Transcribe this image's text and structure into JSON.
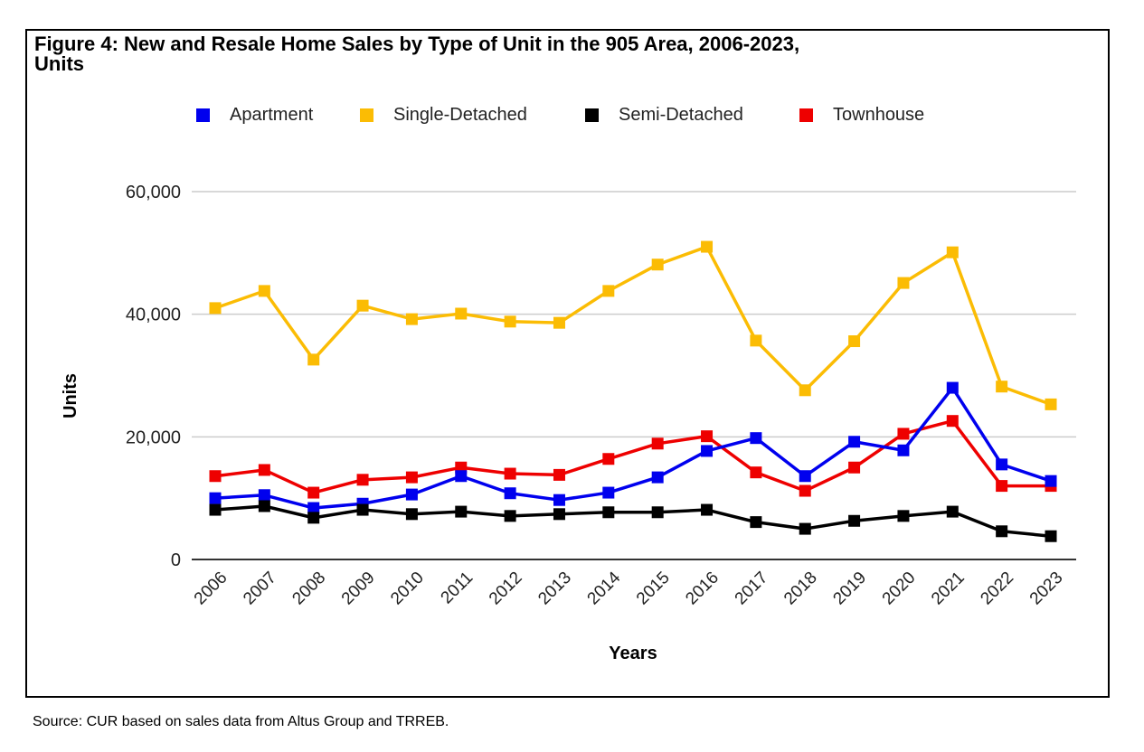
{
  "figure": {
    "source": "Source: CUR based on sales data from Altus Group and TRREB."
  },
  "chart_data": {
    "type": "line",
    "title": "Figure 4: New and Resale Home Sales by Type of Unit in the 905 Area, 2006-2023, Units",
    "title_lines": [
      "Figure 4: New and Resale Home Sales by Type of Unit in the 905 Area, 2006-2023,",
      "Units"
    ],
    "xlabel": "Years",
    "ylabel": "Units",
    "ylim": [
      0,
      60000
    ],
    "yticks": [
      0,
      20000,
      40000,
      60000
    ],
    "ytick_labels": [
      "0",
      "20,000",
      "40,000",
      "60,000"
    ],
    "grid": true,
    "legend_position": "top",
    "categories": [
      "2006",
      "2007",
      "2008",
      "2009",
      "2010",
      "2011",
      "2012",
      "2013",
      "2014",
      "2015",
      "2016",
      "2017",
      "2018",
      "2019",
      "2020",
      "2021",
      "2022",
      "2023"
    ],
    "series": [
      {
        "name": "Apartment",
        "color": "#0000ee",
        "values": [
          10000,
          10500,
          8400,
          9100,
          10600,
          13600,
          10800,
          9700,
          10900,
          13400,
          17700,
          19800,
          13600,
          19200,
          17800,
          28000,
          15500,
          12800
        ]
      },
      {
        "name": "Single-Detached",
        "color": "#fbbc04",
        "values": [
          41000,
          43800,
          32600,
          41400,
          39200,
          40100,
          38800,
          38600,
          43800,
          48100,
          51000,
          35700,
          27600,
          35600,
          45100,
          50100,
          28200,
          25300
        ]
      },
      {
        "name": "Semi-Detached",
        "color": "#000000",
        "values": [
          8100,
          8700,
          6800,
          8100,
          7400,
          7800,
          7100,
          7400,
          7700,
          7700,
          8100,
          6100,
          5000,
          6300,
          7100,
          7800,
          4600,
          3800
        ]
      },
      {
        "name": "Townhouse",
        "color": "#ee0000",
        "values": [
          13600,
          14600,
          10900,
          13000,
          13400,
          15000,
          14000,
          13800,
          16400,
          18900,
          20100,
          14200,
          11200,
          15000,
          20500,
          22600,
          12000,
          12000
        ]
      }
    ],
    "draw_order": [
      1,
      3,
      0,
      2
    ]
  }
}
